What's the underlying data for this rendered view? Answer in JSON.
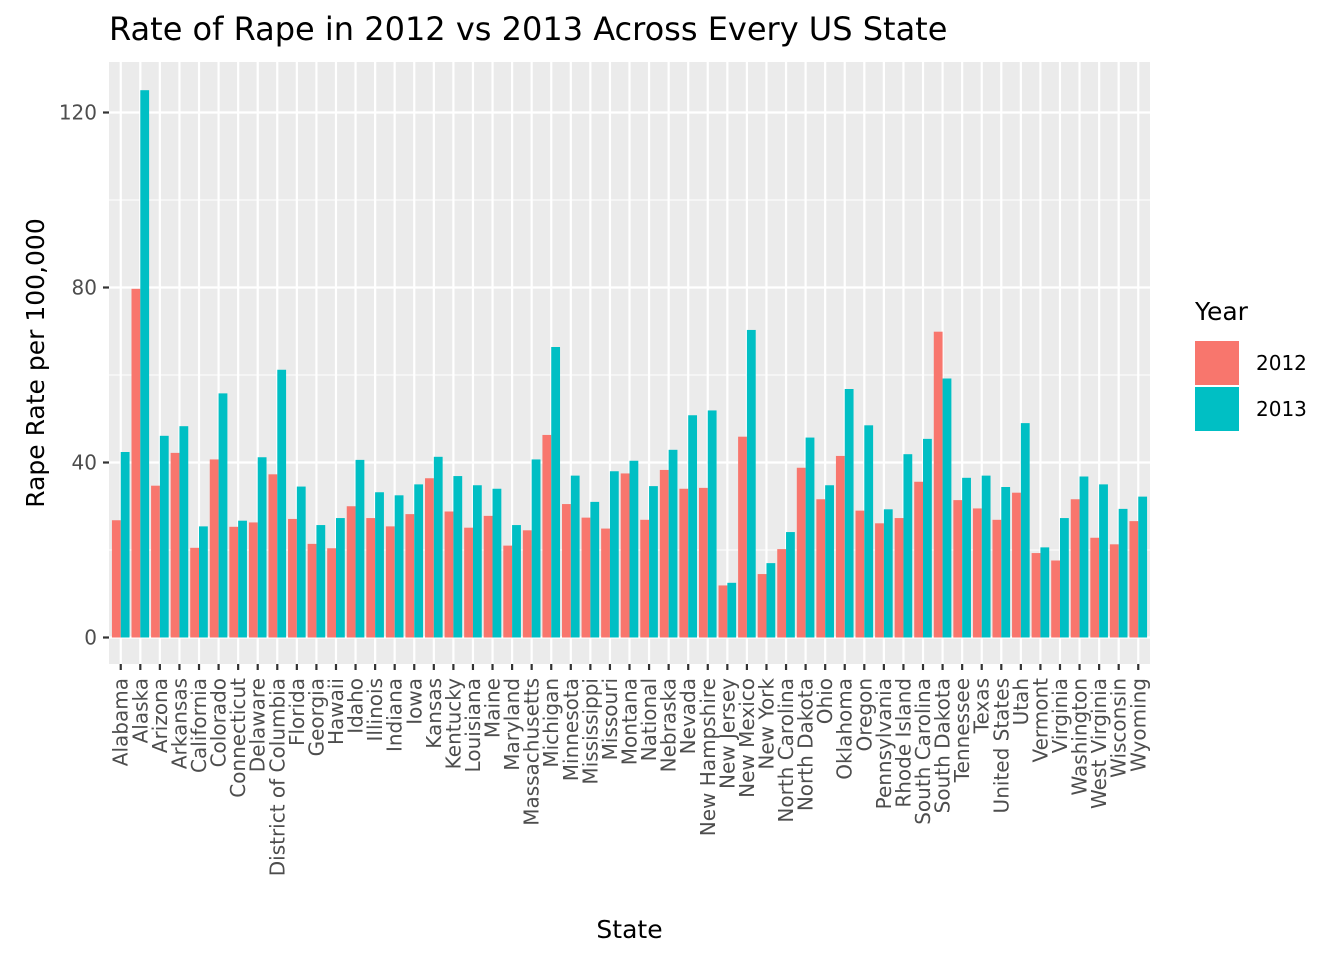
{
  "chart_data": {
    "type": "bar",
    "title": "Rate of Rape in 2012 vs 2013 Across Every US State",
    "xlabel": "State",
    "ylabel": "Rape Rate per 100,000",
    "ylim": [
      -6,
      125
    ],
    "yticks": [
      0,
      40,
      80,
      120
    ],
    "grid": true,
    "legend": {
      "title": "Year",
      "position": "right"
    },
    "categories": [
      "Alabama",
      "Alaska",
      "Arizona",
      "Arkansas",
      "California",
      "Colorado",
      "Connecticut",
      "Delaware",
      "District of Columbia",
      "Florida",
      "Georgia",
      "Hawaii",
      "Idaho",
      "Illinois",
      "Indiana",
      "Iowa",
      "Kansas",
      "Kentucky",
      "Louisiana",
      "Maine",
      "Maryland",
      "Massachusetts",
      "Michigan",
      "Minnesota",
      "Mississippi",
      "Missouri",
      "Montana",
      "National",
      "Nebraska",
      "Nevada",
      "New Hampshire",
      "New Jersey",
      "New Mexico",
      "New York",
      "North Carolina",
      "North Dakota",
      "Ohio",
      "Oklahoma",
      "Oregon",
      "Pennsylvania",
      "Rhode Island",
      "South Carolina",
      "South Dakota",
      "Tennessee",
      "Texas",
      "United States",
      "Utah",
      "Vermont",
      "Virginia",
      "Washington",
      "West Virginia",
      "Wisconsin",
      "Wyoming"
    ],
    "series": [
      {
        "name": "2012",
        "color": "#F8766D",
        "values": [
          26.8,
          79.7,
          34.7,
          42.2,
          20.5,
          40.7,
          25.3,
          26.3,
          37.3,
          27.1,
          21.4,
          20.4,
          30.0,
          27.3,
          25.4,
          28.2,
          36.4,
          28.8,
          25.1,
          27.8,
          21.0,
          24.5,
          46.3,
          30.5,
          27.4,
          24.9,
          37.5,
          26.9,
          38.3,
          34.0,
          34.2,
          11.9,
          45.9,
          14.5,
          20.2,
          38.8,
          31.6,
          41.5,
          29.0,
          26.1,
          27.3,
          35.6,
          69.9,
          31.4,
          29.5,
          26.9,
          33.1,
          19.3,
          17.6,
          31.6,
          22.8,
          21.3,
          26.6
        ]
      },
      {
        "name": "2013",
        "color": "#00BFC4",
        "values": [
          42.4,
          125.1,
          46.1,
          48.3,
          25.4,
          55.8,
          26.7,
          41.2,
          61.2,
          34.5,
          25.7,
          27.3,
          40.6,
          33.2,
          32.5,
          35.0,
          41.3,
          36.9,
          34.8,
          34.0,
          25.7,
          40.7,
          66.4,
          37.0,
          31.0,
          38.0,
          40.4,
          34.6,
          42.9,
          50.8,
          51.9,
          12.5,
          70.3,
          17.0,
          24.1,
          45.7,
          34.8,
          56.8,
          48.5,
          29.3,
          41.9,
          45.4,
          59.2,
          36.5,
          37.0,
          34.4,
          49.0,
          20.6,
          27.3,
          36.8,
          35.0,
          29.4,
          32.2
        ]
      }
    ]
  }
}
